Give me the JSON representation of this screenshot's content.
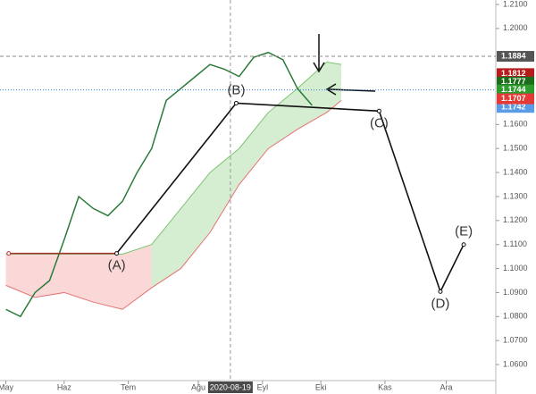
{
  "chart_data": {
    "type": "line",
    "x": [
      0,
      5,
      10,
      15,
      20,
      25,
      30,
      35,
      40,
      45,
      50,
      55,
      60,
      65,
      70,
      75,
      80,
      85,
      90,
      95,
      100,
      105
    ],
    "values": [
      1.083,
      1.08,
      1.09,
      1.095,
      1.112,
      1.13,
      1.125,
      1.122,
      1.128,
      1.14,
      1.15,
      1.17,
      1.175,
      1.18,
      1.185,
      1.183,
      1.18,
      1.188,
      1.19,
      1.187,
      1.175,
      1.168
    ],
    "color": "#2a7a3a",
    "cloud": {
      "x": [
        0,
        10,
        20,
        30,
        40,
        50,
        60,
        70,
        80,
        90,
        100,
        110,
        115
      ],
      "upper": [
        1.106,
        1.106,
        1.106,
        1.106,
        1.106,
        1.11,
        1.125,
        1.14,
        1.15,
        1.165,
        1.175,
        1.186,
        1.185
      ],
      "lower": [
        1.093,
        1.088,
        1.09,
        1.086,
        1.083,
        1.092,
        1.1,
        1.115,
        1.135,
        1.15,
        1.158,
        1.165,
        1.17
      ]
    },
    "pattern": [
      {
        "label": "(A)",
        "x": 38,
        "y": 1.1063
      },
      {
        "label": "(B)",
        "x": 79,
        "y": 1.1689
      },
      {
        "label": "(C)",
        "x": 128,
        "y": 1.1656
      },
      {
        "label": "(D)",
        "x": 149,
        "y": 1.0904
      },
      {
        "label": "(E)",
        "x": 157,
        "y": 1.11
      }
    ],
    "pattern_start_x": 1,
    "xlim": [
      -2,
      168
    ],
    "xticks": [
      {
        "value": 0,
        "label": "May"
      },
      {
        "value": 20,
        "label": "Haz"
      },
      {
        "value": 42,
        "label": "Tem"
      },
      {
        "value": 66,
        "label": "Ağu"
      },
      {
        "value": 77,
        "label": "2020-08-19"
      },
      {
        "value": 88,
        "label": "Eyl"
      },
      {
        "value": 108,
        "label": "Eki"
      },
      {
        "value": 130,
        "label": "Kas"
      },
      {
        "value": 151,
        "label": "Ara"
      }
    ],
    "ylim": [
      1.0563,
      1.21
    ],
    "yticks": [
      {
        "value": 1.21,
        "label": "1.2100"
      },
      {
        "value": 1.2,
        "label": "1.2000"
      },
      {
        "value": 1.16,
        "label": "1.1600"
      },
      {
        "value": 1.15,
        "label": "1.1500"
      },
      {
        "value": 1.14,
        "label": "1.1400"
      },
      {
        "value": 1.13,
        "label": "1.1300"
      },
      {
        "value": 1.12,
        "label": "1.1200"
      },
      {
        "value": 1.11,
        "label": "1.1100"
      },
      {
        "value": 1.1,
        "label": "1.1000"
      },
      {
        "value": 1.09,
        "label": "1.0900"
      },
      {
        "value": 1.08,
        "label": "1.0800"
      },
      {
        "value": 1.07,
        "label": "1.0700"
      },
      {
        "value": 1.06,
        "label": "1.0600"
      }
    ],
    "price_labels": [
      {
        "value": 1.1884,
        "color": "#555555"
      },
      {
        "value": 1.1812,
        "color": "#b71c1c"
      },
      {
        "value": 1.1777,
        "color": "#1b6e1b"
      },
      {
        "value": 1.1744,
        "color": "#2e9b2e"
      },
      {
        "value": 1.1744,
        "color": "#2f7fe0"
      },
      {
        "value": 1.1742,
        "color": "#5a9be8"
      },
      {
        "value": 1.1707,
        "color": "#e53935"
      }
    ]
  }
}
